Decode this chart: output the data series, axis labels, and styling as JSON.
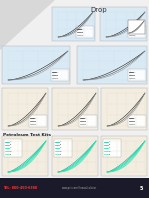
{
  "title": "Drop",
  "section_label": "Petroleum Test Kits",
  "bg_color": "#f0f0f0",
  "phone": "TEL: 800-450-6380",
  "website": "www.pct.com/flowcalculator",
  "page_num": "5",
  "top_chart_bg": "#daeaf5",
  "mid_chart_bg": "#daeaf5",
  "bot_chart_bg": "#f2ede0",
  "kit_chart_bg": "#f2ede0",
  "top_line_colors": [
    "#222222",
    "#555555",
    "#999999"
  ],
  "bot_line_colors": [
    "#222222",
    "#555555",
    "#999999"
  ],
  "teal_colors": [
    "#00b894",
    "#00cba8",
    "#00ddbb",
    "#22eebb",
    "#55ddaa"
  ],
  "footer_bg": "#1a1a2a",
  "diagonal_color": "#c8c8c8"
}
